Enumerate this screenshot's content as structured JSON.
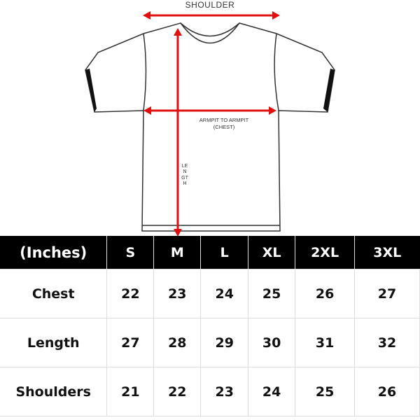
{
  "diagram": {
    "shoulder_label": "SHOULDER",
    "armpit_label_line1": "ARMPIT TO ARMPIT",
    "armpit_label_line2": "(CHEST)",
    "length_label": "LENGTH",
    "arrow_color": "#e01010"
  },
  "table": {
    "header": [
      "(Inches)",
      "S",
      "M",
      "L",
      "XL",
      "2XL",
      "3XL"
    ],
    "rows": [
      {
        "label": "Chest",
        "values": [
          "22",
          "23",
          "24",
          "25",
          "26",
          "27"
        ]
      },
      {
        "label": "Length",
        "values": [
          "27",
          "28",
          "29",
          "30",
          "31",
          "32"
        ]
      },
      {
        "label": "Shoulders",
        "values": [
          "21",
          "22",
          "23",
          "24",
          "25",
          "26"
        ]
      }
    ]
  }
}
